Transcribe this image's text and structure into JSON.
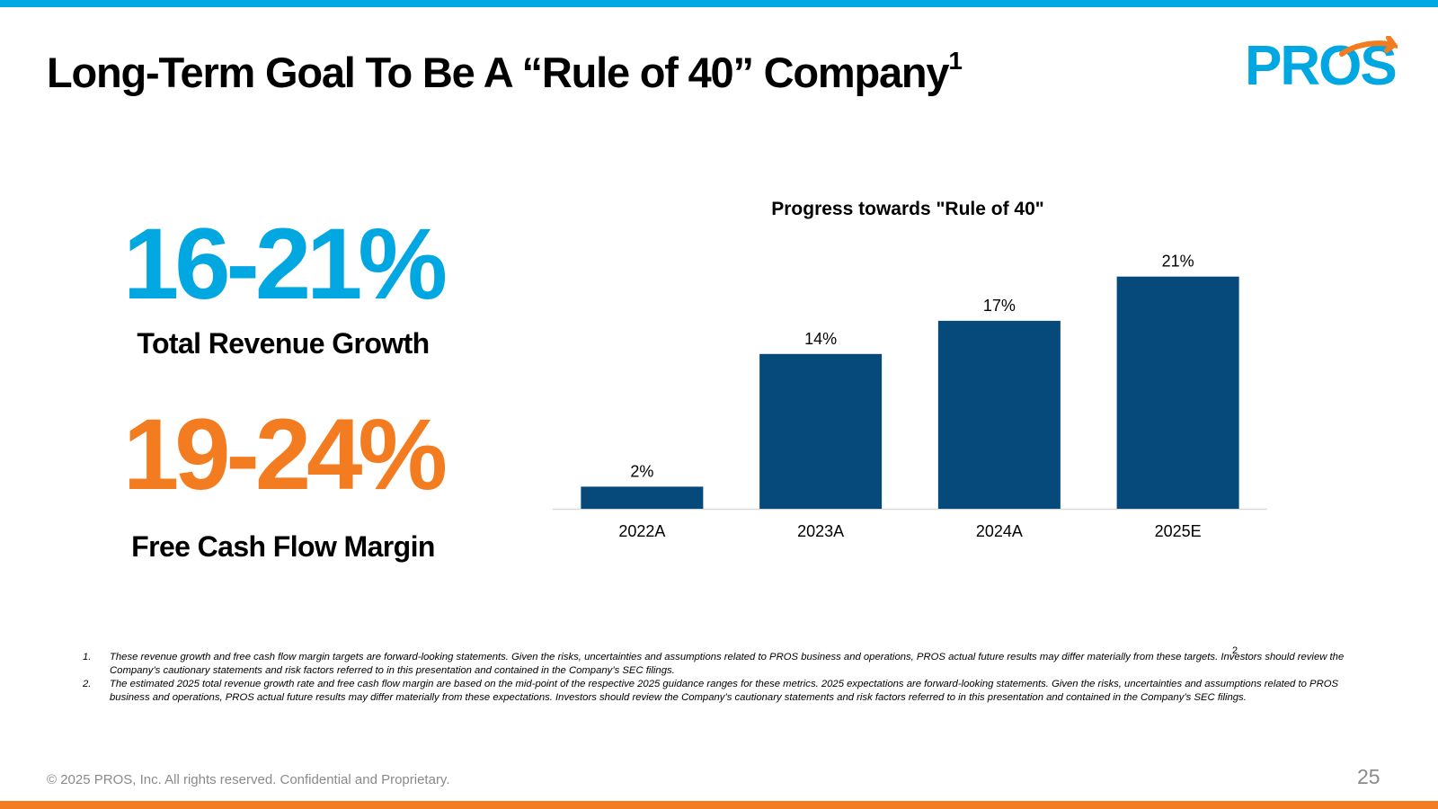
{
  "slide": {
    "title": "Long-Term Goal To Be A “Rule of 40” Company",
    "title_sup": "1",
    "logo_text": "PROS",
    "page_number": "25",
    "copyright": "© 2025 PROS, Inc. All rights reserved. Confidential and Proprietary."
  },
  "kpis": [
    {
      "value": "16-21%",
      "label": "Total Revenue Growth"
    },
    {
      "value": "19-24%",
      "label": "Free Cash Flow Margin"
    }
  ],
  "chart_data": {
    "type": "bar",
    "title": "Progress towards \"Rule of 40\"",
    "categories": [
      "2022A",
      "2023A",
      "2024A",
      "2025E"
    ],
    "values": [
      2,
      14,
      17,
      21
    ],
    "data_labels": [
      "2%",
      "14%",
      "17%",
      "21%"
    ],
    "footnote_marker": "2",
    "ylim": [
      0,
      25
    ],
    "grid": false,
    "bar_color": "#064a7c"
  },
  "footnotes": [
    {
      "num": "1.",
      "text": "These revenue growth and free cash flow margin targets are forward-looking statements. Given the risks, uncertainties and assumptions related to PROS business and operations, PROS actual future results may differ materially from these targets. Investors should review the Company’s cautionary statements and risk factors referred to in this presentation and contained in the Company’s SEC filings."
    },
    {
      "num": "2.",
      "text": "The estimated 2025 total revenue growth rate and free cash flow margin are based on the mid-point of the respective 2025 guidance ranges for these metrics. 2025 expectations are forward-looking statements. Given the risks, uncertainties and assumptions related to PROS business and operations, PROS actual future results may differ materially from these expectations. Investors should review the Company’s cautionary statements and risk factors referred to in this presentation and contained in the Company’s SEC filings."
    }
  ],
  "colors": {
    "accent_blue": "#00a7e1",
    "accent_orange": "#f47c20",
    "bar_navy": "#064a7c"
  }
}
